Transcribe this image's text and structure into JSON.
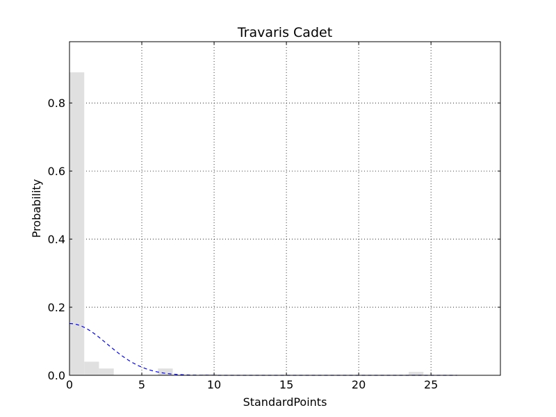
{
  "colors": {
    "background": "#ffffff",
    "bar_fill": "#e0e0e0",
    "fit_line": "#0000ff",
    "grid": "#000000",
    "axes": "#000000"
  },
  "chart_data": {
    "type": "bar",
    "title": "Travaris Cadet",
    "xlabel": "StandardPoints",
    "ylabel": "Probability",
    "xlim": [
      0,
      29.8
    ],
    "ylim": [
      0,
      0.98
    ],
    "xticks": [
      0,
      5,
      10,
      15,
      20,
      25
    ],
    "yticks": [
      0.0,
      0.2,
      0.4,
      0.6,
      0.8
    ],
    "ytick_labels": [
      "0.0",
      "0.2",
      "0.4",
      "0.6",
      "0.8"
    ],
    "grid": true,
    "grid_style": "dotted",
    "bins": {
      "x0": 0,
      "width": 1.02,
      "values": [
        0.89,
        0.04,
        0.02,
        0,
        0,
        0,
        0.02,
        0,
        0,
        0.003,
        0,
        0,
        0,
        0,
        0,
        0,
        0,
        0,
        0,
        0,
        0,
        0,
        0,
        0.01,
        0
      ]
    },
    "fit_curve": {
      "style": "dashed",
      "x_start": 0,
      "x_end": 26.8,
      "peak": 0.152,
      "mean": 0,
      "sd": 2.6
    }
  }
}
